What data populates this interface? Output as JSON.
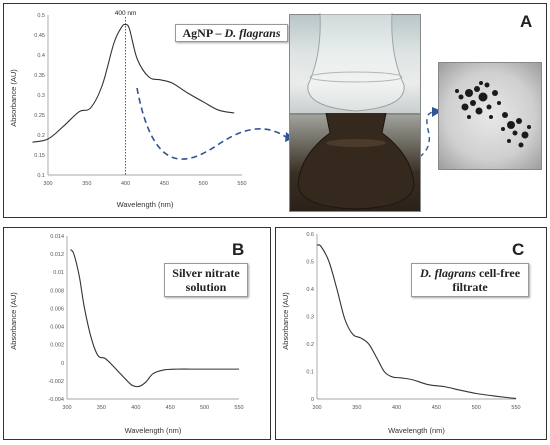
{
  "panels": {
    "a": {
      "letter": "A",
      "label_prefix": "AgNP – ",
      "label_species": "D. flagrans",
      "peak_label": "400 nm"
    },
    "b": {
      "letter": "B",
      "label": "Silver nitrate solution"
    },
    "c": {
      "letter": "C",
      "label_species": "D. flagrans",
      "label_rest": " cell-free filtrate"
    }
  },
  "icons": {
    "arrow": "right-arrow-icon"
  },
  "colors": {
    "curve": "#333333",
    "dashed_arrow": "#2f5597",
    "vline": "#333333"
  },
  "chart_data": [
    {
      "id": "a",
      "type": "line",
      "xlabel": "Wavelength (nm)",
      "ylabel": "Absorbance (AU)",
      "xlim": [
        300,
        550
      ],
      "ylim": [
        0.1,
        0.5
      ],
      "xticks": [
        300,
        350,
        400,
        450,
        500,
        550
      ],
      "yticks": [
        0.1,
        0.15,
        0.2,
        0.25,
        0.3,
        0.35,
        0.4,
        0.45,
        0.5
      ],
      "annotation": {
        "x": 400,
        "text": "400 nm"
      },
      "series": [
        {
          "x": [
            280,
            300,
            320,
            340,
            355,
            370,
            385,
            395,
            400,
            405,
            415,
            430,
            445,
            460,
            480,
            500,
            520,
            540
          ],
          "y": [
            0.182,
            0.19,
            0.222,
            0.258,
            0.268,
            0.325,
            0.43,
            0.47,
            0.476,
            0.465,
            0.39,
            0.345,
            0.338,
            0.33,
            0.305,
            0.283,
            0.262,
            0.255
          ]
        }
      ]
    },
    {
      "id": "b",
      "type": "line",
      "xlabel": "Wavelength (nm)",
      "ylabel": "Absorbance (AU)",
      "xlim": [
        300,
        550
      ],
      "ylim": [
        -0.004,
        0.014
      ],
      "xticks": [
        300,
        350,
        400,
        450,
        500,
        550
      ],
      "yticks": [
        -0.004,
        -0.002,
        0,
        0.002,
        0.004,
        0.006,
        0.008,
        0.01,
        0.012,
        0.014
      ],
      "ytick_labels": [
        "-0.004",
        "-0.002",
        "0",
        "0.002",
        "0.004",
        "0.006",
        "0.008",
        "0.01",
        "0.012",
        "0.014"
      ],
      "series": [
        {
          "x": [
            305,
            310,
            318,
            325,
            335,
            345,
            355,
            365,
            375,
            385,
            395,
            405,
            415,
            425,
            440,
            460,
            480,
            500,
            520,
            540,
            550
          ],
          "y": [
            0.0125,
            0.012,
            0.0095,
            0.0062,
            0.0028,
            0.0008,
            0.0005,
            -0.0002,
            -0.001,
            -0.0018,
            -0.0025,
            -0.0026,
            -0.0021,
            -0.0012,
            -0.0008,
            -0.0007,
            -0.0007,
            -0.0007,
            -0.0007,
            -0.0007,
            -0.0007
          ]
        }
      ]
    },
    {
      "id": "c",
      "type": "line",
      "xlabel": "Wavelength (nm)",
      "ylabel": "Absorbance (AU)",
      "xlim": [
        300,
        550
      ],
      "ylim": [
        0,
        0.6
      ],
      "xticks": [
        300,
        350,
        400,
        450,
        500,
        550
      ],
      "yticks": [
        0,
        0.1,
        0.2,
        0.3,
        0.4,
        0.5,
        0.6
      ],
      "series": [
        {
          "x": [
            300,
            305,
            315,
            325,
            335,
            345,
            355,
            365,
            375,
            385,
            395,
            405,
            420,
            440,
            460,
            480,
            500,
            520,
            540,
            550
          ],
          "y": [
            0.56,
            0.555,
            0.5,
            0.4,
            0.29,
            0.235,
            0.222,
            0.2,
            0.15,
            0.098,
            0.08,
            0.077,
            0.07,
            0.052,
            0.045,
            0.032,
            0.02,
            0.012,
            0.005,
            0.002
          ]
        }
      ]
    }
  ]
}
